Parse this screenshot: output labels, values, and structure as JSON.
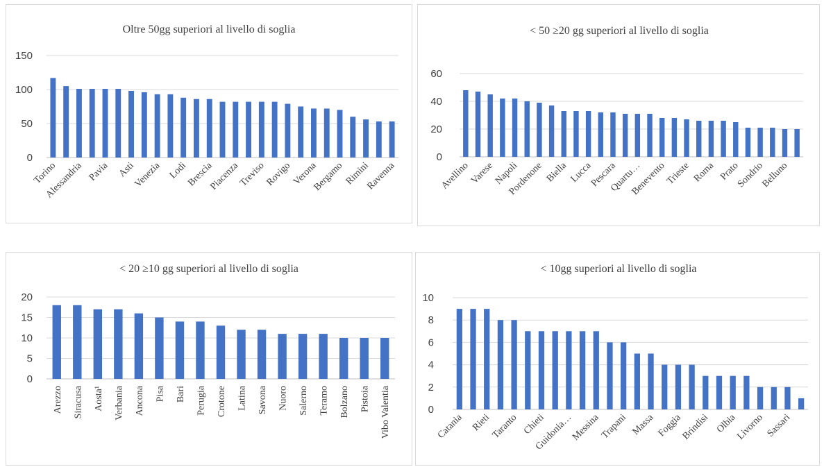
{
  "chart_data": [
    {
      "type": "bar",
      "title": "Oltre 50gg superiori al livello di soglia",
      "xlabel": "",
      "ylabel": "",
      "ylim": [
        0,
        150
      ],
      "yticks": [
        0,
        50,
        100,
        150
      ],
      "grid": true,
      "legend": "none",
      "color": "#4472c4",
      "label_step": 2,
      "label_rotation": -45,
      "categories": [
        "Torino",
        "",
        "Alessandria",
        "",
        "Pavia",
        "",
        "Asti",
        "",
        "Venezia",
        "",
        "Lodi",
        "",
        "Brescia",
        "",
        "Piacenza",
        "",
        "Treviso",
        "",
        "Rovigo",
        "",
        "Verona",
        "",
        "Bergamo",
        "",
        "Rimini",
        "",
        "Ravenna"
      ],
      "values": [
        117,
        105,
        101,
        101,
        101,
        101,
        98,
        96,
        93,
        93,
        88,
        86,
        86,
        82,
        82,
        82,
        82,
        82,
        79,
        75,
        72,
        72,
        70,
        60,
        56,
        53,
        53
      ]
    },
    {
      "type": "bar",
      "title": "< 50 ≥20 gg superiori al livello di soglia",
      "xlabel": "",
      "ylabel": "",
      "ylim": [
        0,
        60
      ],
      "yticks": [
        0,
        20,
        40,
        60
      ],
      "grid": true,
      "legend": "none",
      "color": "#4472c4",
      "label_step": 2,
      "label_rotation": -45,
      "categories": [
        "Avellino",
        "",
        "Varese",
        "",
        "Napoli",
        "",
        "Pordenone",
        "",
        "Biella",
        "",
        "Lucca",
        "",
        "Pescara",
        "",
        "Quartu…",
        "",
        "Benevento",
        "",
        "Trieste",
        "",
        "Roma",
        "",
        "Prato",
        "",
        "Sondrio",
        "",
        "Belluno",
        ""
      ],
      "values": [
        48,
        47,
        45,
        42,
        42,
        40,
        39,
        37,
        33,
        33,
        33,
        32,
        32,
        31,
        31,
        31,
        28,
        28,
        27,
        26,
        26,
        26,
        25,
        21,
        21,
        21,
        20,
        20
      ]
    },
    {
      "type": "bar",
      "title": "< 20 ≥10  gg superiori al livello di soglia",
      "xlabel": "",
      "ylabel": "",
      "ylim": [
        0,
        20
      ],
      "yticks": [
        0,
        5,
        10,
        15,
        20
      ],
      "grid": true,
      "legend": "none",
      "color": "#4472c4",
      "label_step": 1,
      "label_rotation": -90,
      "categories": [
        "Arezzo",
        "Siracusa",
        "Aosta¹",
        "Verbania",
        "Ancona",
        "Pisa",
        "Bari",
        "Perugia",
        "Crotone",
        "Latina",
        "Savona",
        "Nuoro",
        "Salerno",
        "Teramo",
        "Bolzano",
        "Pistoia",
        "Vibo Valentia"
      ],
      "values": [
        18,
        18,
        17,
        17,
        16,
        15,
        14,
        14,
        13,
        12,
        12,
        11,
        11,
        11,
        10,
        10,
        10
      ]
    },
    {
      "type": "bar",
      "title": "< 10gg superiori al livello di soglia",
      "xlabel": "",
      "ylabel": "",
      "ylim": [
        0,
        10
      ],
      "yticks": [
        0,
        2,
        4,
        6,
        8,
        10
      ],
      "grid": true,
      "legend": "none",
      "color": "#4472c4",
      "label_step": 2,
      "label_rotation": -45,
      "categories": [
        "Catania",
        "",
        "Rieti",
        "",
        "Taranto",
        "",
        "Chieti",
        "",
        "Guidonia…",
        "",
        "Messina",
        "",
        "Trapani",
        "",
        "Massa",
        "",
        "Foggia",
        "",
        "Brindisi",
        "",
        "Olbia",
        "",
        "Livorno",
        "",
        "Sassari",
        ""
      ],
      "values": [
        9,
        9,
        9,
        8,
        8,
        7,
        7,
        7,
        7,
        7,
        7,
        6,
        6,
        5,
        5,
        4,
        4,
        4,
        3,
        3,
        3,
        3,
        2,
        2,
        2,
        1
      ]
    }
  ]
}
